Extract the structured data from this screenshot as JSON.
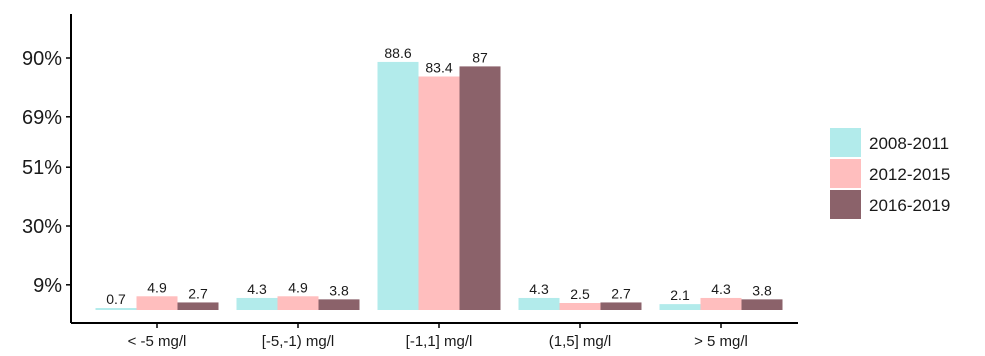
{
  "chart_data": {
    "type": "bar",
    "title": "",
    "xlabel": "",
    "ylabel": "",
    "categories": [
      "< -5 mg/l",
      "[-5,-1) mg/l",
      "[-1,1] mg/l",
      "(1,5] mg/l",
      "> 5 mg/l"
    ],
    "series": [
      {
        "name": "2008-2011",
        "color": "#b2ebeb",
        "values": [
          0.7,
          4.3,
          88.6,
          4.3,
          2.1
        ],
        "labels": [
          "0.7",
          "4.3",
          "88.6",
          "4.3",
          "2.1"
        ]
      },
      {
        "name": "2012-2015",
        "color": "#ffbebe",
        "values": [
          4.9,
          4.9,
          83.4,
          2.5,
          4.3
        ],
        "labels": [
          "4.9",
          "4.9",
          "83.4",
          "2.5",
          "4.3"
        ]
      },
      {
        "name": "2016-2019",
        "color": "#8b626a",
        "values": [
          2.7,
          3.8,
          87,
          2.7,
          3.8
        ],
        "labels": [
          "2.7",
          "3.8",
          "87",
          "2.7",
          "3.8"
        ]
      }
    ],
    "yticks": [
      {
        "label": "9%",
        "value": 9
      },
      {
        "label": "30%",
        "value": 30
      },
      {
        "label": "51%",
        "value": 51
      },
      {
        "label": "69%",
        "value": 69
      },
      {
        "label": "90%",
        "value": 90
      }
    ],
    "ylim": [
      0,
      100
    ],
    "grid": false,
    "legend_position": "right"
  }
}
